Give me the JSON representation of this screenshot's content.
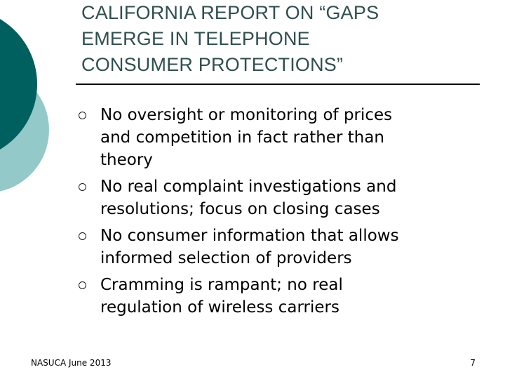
{
  "colors": {
    "dark_teal": "#005f5f",
    "light_teal": "#93c9c9",
    "title_text": "#2f4f4f"
  },
  "slide": {
    "title_lines": [
      "CALIFORNIA REPORT ON “GAPS",
      "EMERGE IN TELEPHONE",
      "CONSUMER PROTECTIONS”"
    ],
    "bullets": [
      {
        "lines": [
          "No oversight or monitoring of prices",
          "and competition in fact rather than",
          "theory"
        ]
      },
      {
        "lines": [
          "No real complaint investigations and",
          "resolutions; focus on closing cases"
        ]
      },
      {
        "lines": [
          "No consumer information that allows",
          "informed selection of providers"
        ]
      },
      {
        "lines": [
          "Cramming is rampant; no real",
          "regulation of wireless carriers"
        ]
      }
    ],
    "footer": {
      "left": "NASUCA June 2013",
      "page_number": "7"
    }
  }
}
